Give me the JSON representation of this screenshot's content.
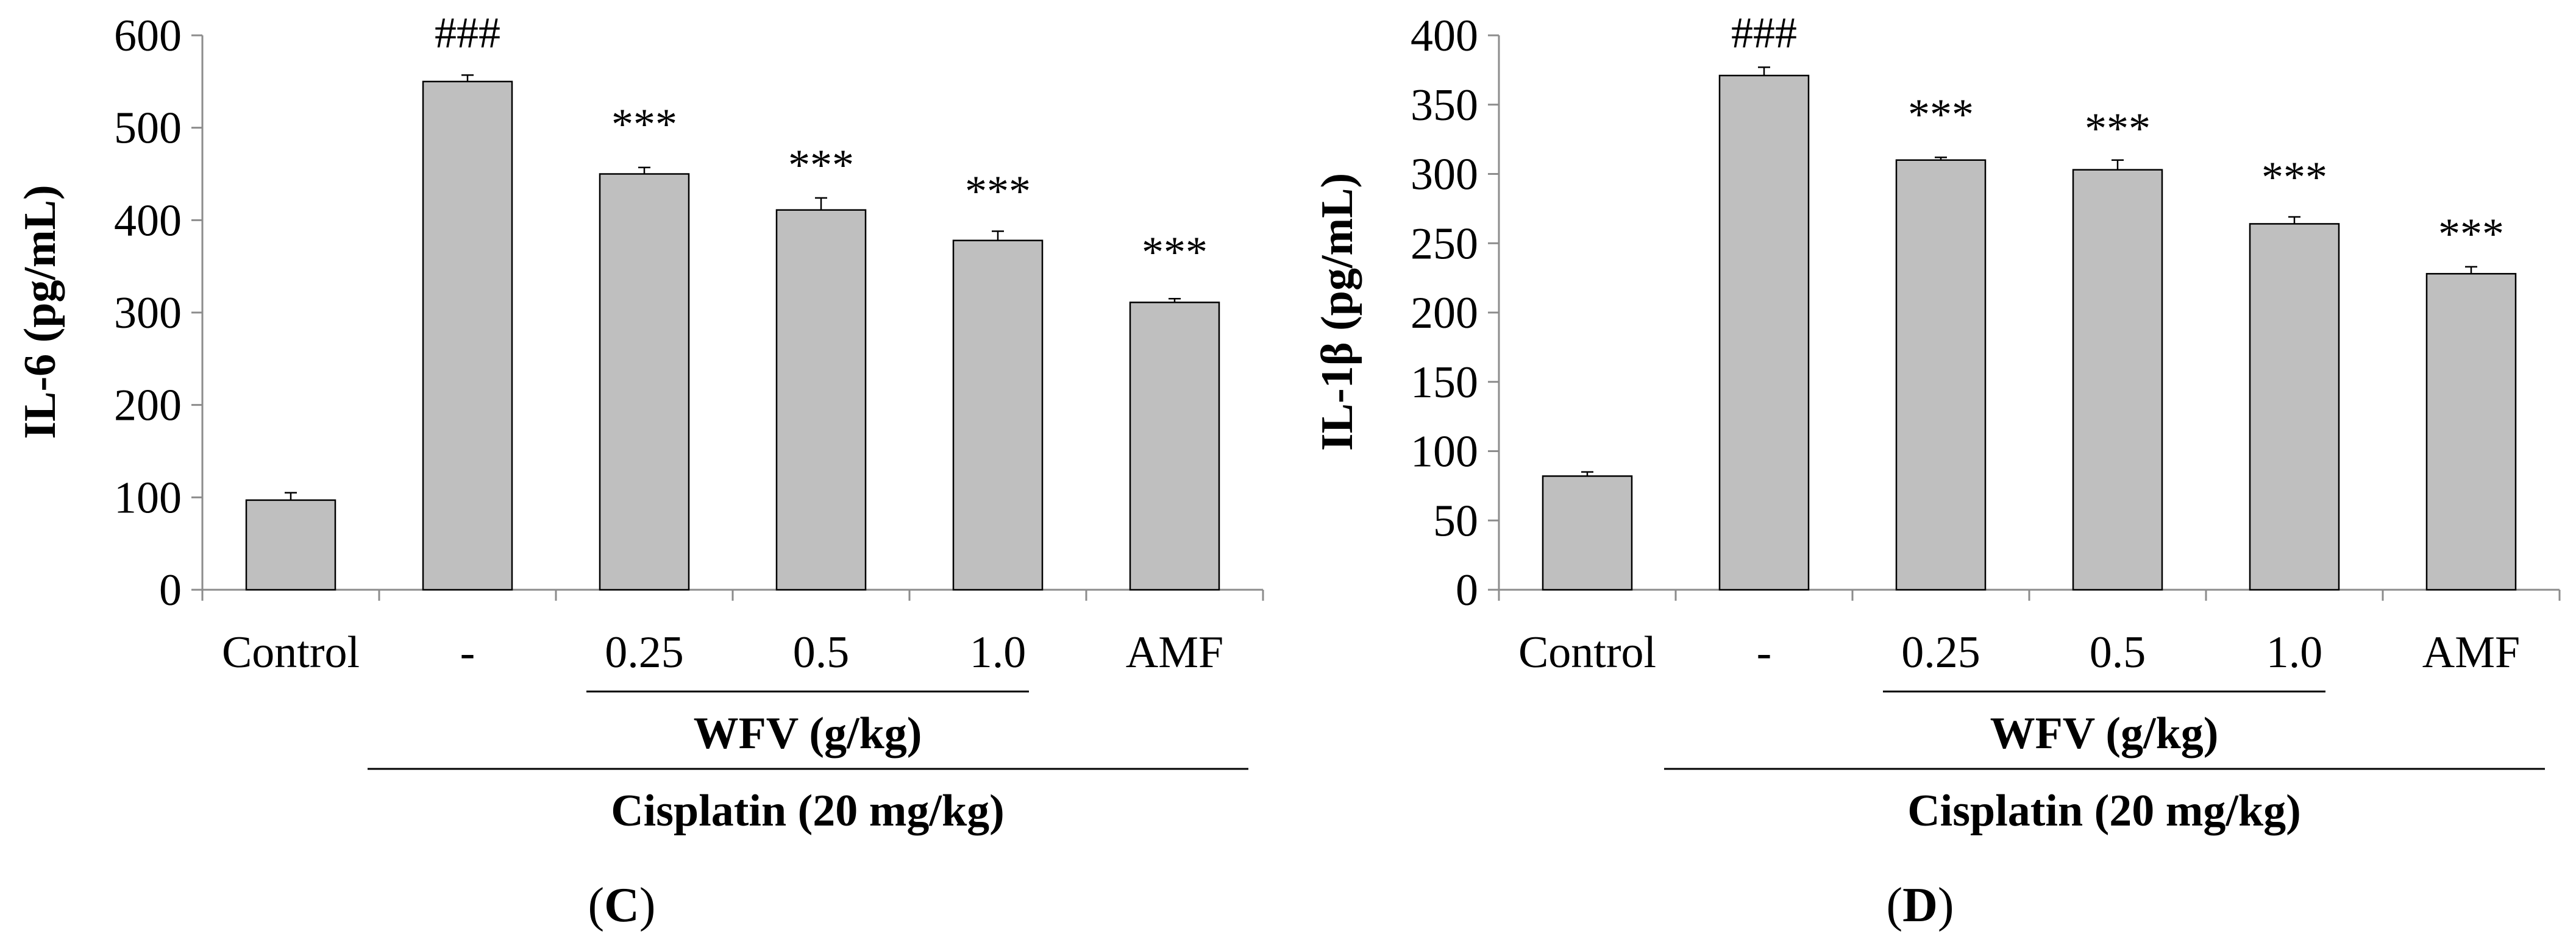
{
  "chart_data": [
    {
      "id": "C",
      "type": "bar",
      "panel_letter": "C",
      "ylabel": "IL-6 (pg/mL)",
      "ylim": [
        0,
        600
      ],
      "yticks": [
        0,
        100,
        200,
        300,
        400,
        500,
        600
      ],
      "categories": [
        "Control",
        "-",
        "0.25",
        "0.5",
        "1.0",
        "AMF"
      ],
      "values": [
        97,
        550,
        450,
        411,
        378,
        311
      ],
      "errors": [
        8,
        7,
        7,
        13,
        10,
        4
      ],
      "annotations": [
        "",
        "###",
        "***",
        "***",
        "***",
        "***"
      ],
      "group_labels": {
        "inner": "WFV (g/kg)",
        "outer": "Cisplatin (20 mg/kg)"
      },
      "bar_color": "#bfbfbf"
    },
    {
      "id": "D",
      "type": "bar",
      "panel_letter": "D",
      "ylabel": "IL-1β (pg/mL)",
      "ylim": [
        0,
        400
      ],
      "yticks": [
        0,
        50,
        100,
        150,
        200,
        250,
        300,
        350,
        400
      ],
      "categories": [
        "Control",
        "-",
        "0.25",
        "0.5",
        "1.0",
        "AMF"
      ],
      "values": [
        82,
        371,
        310,
        303,
        264,
        228
      ],
      "errors": [
        3,
        6,
        2,
        7,
        5,
        5
      ],
      "annotations": [
        "",
        "###",
        "***",
        "***",
        "***",
        "***"
      ],
      "group_labels": {
        "inner": "WFV (g/kg)",
        "outer": "Cisplatin (20 mg/kg)"
      },
      "bar_color": "#bfbfbf"
    }
  ]
}
